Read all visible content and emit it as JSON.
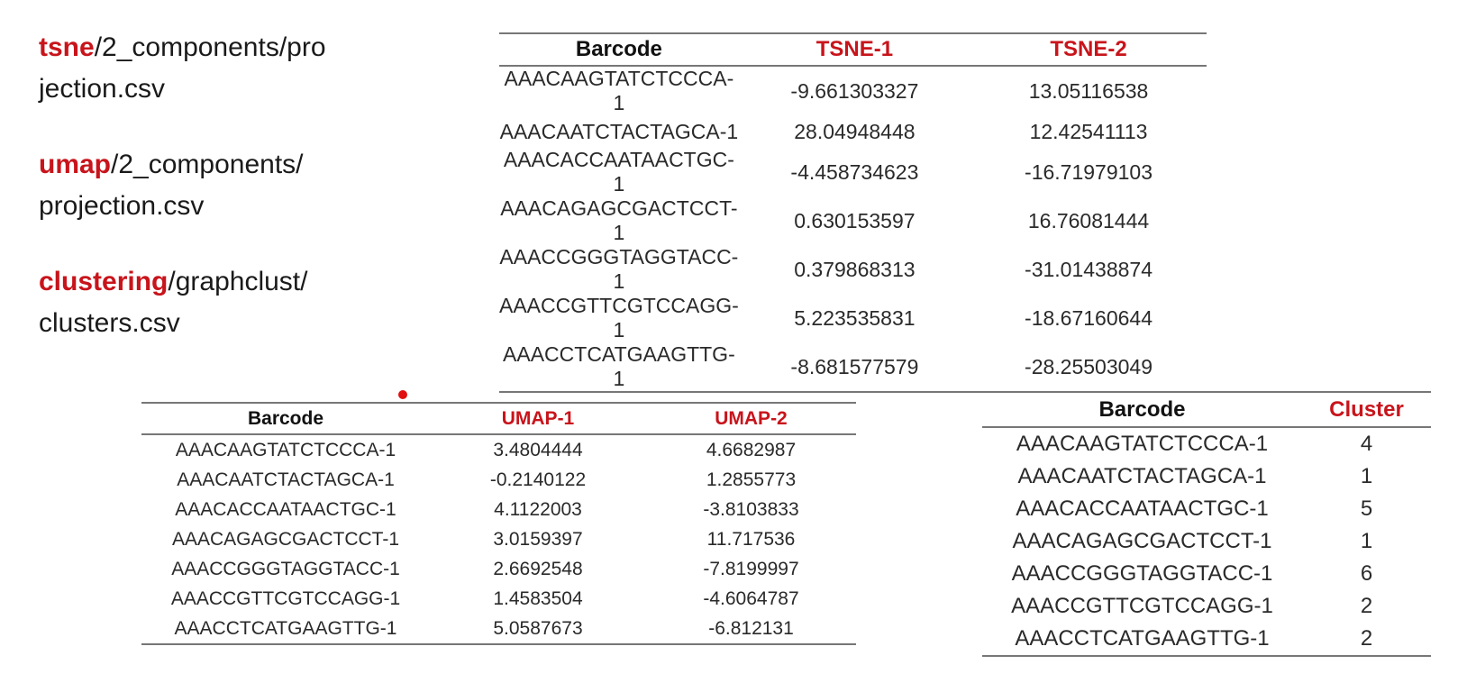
{
  "paths": [
    {
      "keyword": "tsne",
      "line1_rest": "/2_components/pro",
      "line2": "jection.csv"
    },
    {
      "keyword": "umap",
      "line1_rest": "/2_components/",
      "line2": "projection.csv"
    },
    {
      "keyword": "clustering",
      "line1_rest": "/graphclust/",
      "line2": "clusters.csv"
    }
  ],
  "tsne_table": {
    "headers": [
      "Barcode",
      "TSNE-1",
      "TSNE-2"
    ],
    "rows": [
      [
        "AAACAAGTATCTCCCA-1",
        "-9.661303327",
        "13.05116538"
      ],
      [
        "AAACAATCTACTAGCA-1",
        "28.04948448",
        "12.42541113"
      ],
      [
        "AAACACCAATAACTGC-1",
        "-4.458734623",
        "-16.71979103"
      ],
      [
        "AAACAGAGCGACTCCT-1",
        "0.630153597",
        "16.76081444"
      ],
      [
        "AAACCGGGTAGGTACC-1",
        "0.379868313",
        "-31.01438874"
      ],
      [
        "AAACCGTTCGTCCAGG-1",
        "5.223535831",
        "-18.67160644"
      ],
      [
        "AAACCTCATGAAGTTG-1",
        "-8.681577579",
        "-28.25503049"
      ]
    ]
  },
  "umap_table": {
    "headers": [
      "Barcode",
      "UMAP-1",
      "UMAP-2"
    ],
    "rows": [
      [
        "AAACAAGTATCTCCCA-1",
        "3.4804444",
        "4.6682987"
      ],
      [
        "AAACAATCTACTAGCA-1",
        "-0.2140122",
        "1.2855773"
      ],
      [
        "AAACACCAATAACTGC-1",
        "4.1122003",
        "-3.8103833"
      ],
      [
        "AAACAGAGCGACTCCT-1",
        "3.0159397",
        "11.717536"
      ],
      [
        "AAACCGGGTAGGTACC-1",
        "2.6692548",
        "-7.8199997"
      ],
      [
        "AAACCGTTCGTCCAGG-1",
        "1.4583504",
        "-4.6064787"
      ],
      [
        "AAACCTCATGAAGTTG-1",
        "5.0587673",
        "-6.812131"
      ]
    ]
  },
  "cluster_table": {
    "headers": [
      "Barcode",
      "Cluster"
    ],
    "rows": [
      [
        "AAACAAGTATCTCCCA-1",
        "4"
      ],
      [
        "AAACAATCTACTAGCA-1",
        "1"
      ],
      [
        "AAACACCAATAACTGC-1",
        "5"
      ],
      [
        "AAACAGAGCGACTCCT-1",
        "1"
      ],
      [
        "AAACCGGGTAGGTACC-1",
        "6"
      ],
      [
        "AAACCGTTCGTCCAGG-1",
        "2"
      ],
      [
        "AAACCTCATGAAGTTG-1",
        "2"
      ]
    ]
  },
  "colors": {
    "accent_red": "#c8141b",
    "text": "#1a1a1a",
    "rule": "#777777",
    "laser_dot": "#e01010"
  }
}
